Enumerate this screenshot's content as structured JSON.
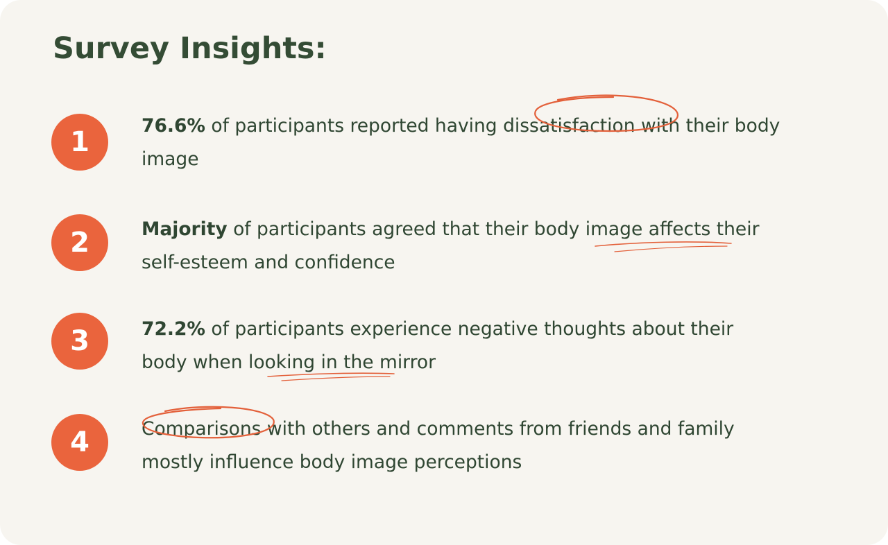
{
  "title": "Survey Insights:",
  "accent_color": "#ea643d",
  "insights": [
    {
      "number": "1",
      "line1": {
        "highlight": "76.6%",
        "a": " of participants reported having ",
        "b": "dissatisfaction",
        "c": " with their body"
      },
      "line2": "image"
    },
    {
      "number": "2",
      "line1": {
        "highlight": "Majority",
        "a": " of participants agreed that their ",
        "b": "body image affects",
        "c": " their"
      },
      "line2": "self-esteem and confidence"
    },
    {
      "number": "3",
      "line1": {
        "highlight": "72.2%",
        "a": " of participants experience negative thoughts about their",
        "b": "",
        "c": ""
      },
      "line2a": "body when ",
      "line2b": "looking in the",
      "line2c": " mirror"
    },
    {
      "number": "4",
      "line1": {
        "a": "Comparisons",
        "b": " with others and comments from friends and family"
      },
      "line2": "mostly influence body image perceptions"
    }
  ]
}
